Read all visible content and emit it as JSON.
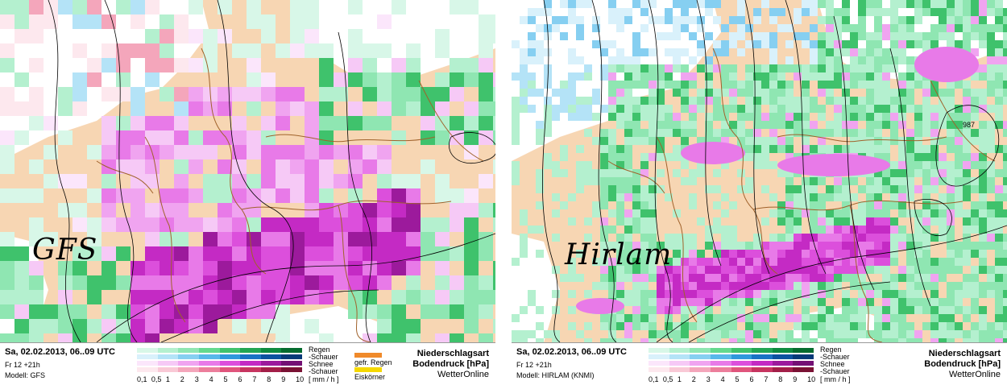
{
  "panels": [
    {
      "model_label": "GFS",
      "date": "Sa, 02.02.2013, 06..09 UTC",
      "run": "Fr 12 +21h",
      "model": "Modell: GFS",
      "pressure_label": ""
    },
    {
      "model_label": "Hirlam",
      "date": "Sa, 02.02.2013, 06..09 UTC",
      "run": "Fr 12 +21h",
      "model": "Modell: HIRLAM (KNMI)",
      "pressure_label": "987"
    }
  ],
  "legend": {
    "types": [
      "Regen",
      "-Schauer",
      "Schnee",
      "-Schauer"
    ],
    "ticks": [
      "0,1",
      "0,5",
      "1",
      "2",
      "3",
      "4",
      "5",
      "6",
      "7",
      "8",
      "9",
      "10"
    ],
    "unit": "[ mm / h ]",
    "extra": [
      "gefr. Regen",
      "Eiskörner"
    ],
    "title_line1": "Niederschlagsart",
    "title_line2": "Bodendruck [hPa]",
    "source": "WetterOnline",
    "colors": {
      "regen": [
        "#d8f7e8",
        "#b4f0cf",
        "#8fe6b2",
        "#64d98e",
        "#3fc26c",
        "#22a553",
        "#0e8a3f",
        "#056b2e"
      ],
      "regen_schauer": [
        "#d9f1fb",
        "#b4e3f7",
        "#86cff1",
        "#58b8ea",
        "#2f98dc",
        "#1a72c4",
        "#0d52a0",
        "#063a78"
      ],
      "schnee": [
        "#fbe6fb",
        "#f6c9f6",
        "#f0a4f0",
        "#e87ae8",
        "#dc4fdc",
        "#c42ac4",
        "#9c1a9c",
        "#741074"
      ],
      "schnee_schauer": [
        "#fde8ee",
        "#f9c9d6",
        "#f4a6bb",
        "#ec7e9c",
        "#e0557c",
        "#c73560",
        "#a31f48",
        "#7a1234"
      ],
      "gefr_regen": "#f08a2a",
      "eiskoerner": "#f5d800",
      "land": "#f7d6b3",
      "sea": "#ffffff",
      "borders": "#a0622b",
      "isobars": "#000000"
    }
  }
}
